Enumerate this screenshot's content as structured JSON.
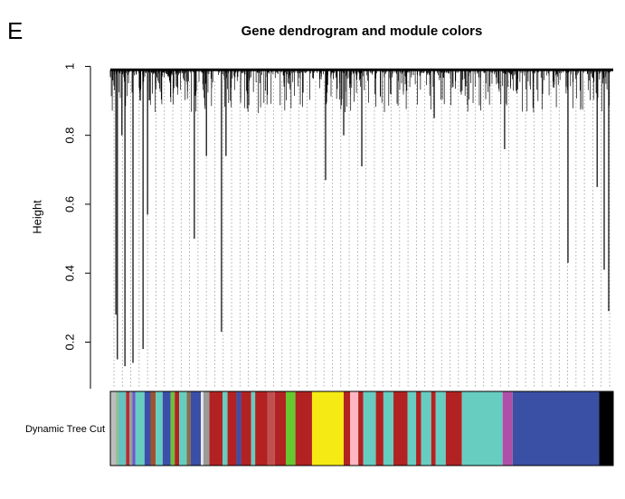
{
  "panel_label": "E",
  "chart_data": {
    "type": "dendrogram",
    "title": "Gene dendrogram and module colors",
    "ylabel": "Height",
    "ylim": [
      0.07,
      1.03
    ],
    "yticks": [
      0.2,
      0.4,
      0.6,
      0.8,
      1.0
    ],
    "xlim": [
      0,
      100
    ],
    "merge_height": 0.99,
    "x": [
      1.1,
      1.4,
      2.3,
      2.9,
      4.5,
      6.5,
      7.4,
      16.7,
      19.1,
      22.1,
      23.0,
      42.8,
      46.4,
      50.0,
      64.4,
      78.4,
      91.0,
      96.8,
      98.2,
      99.1
    ],
    "values": [
      0.28,
      0.15,
      0.8,
      0.13,
      0.14,
      0.18,
      0.57,
      0.5,
      0.74,
      0.23,
      0.74,
      0.67,
      0.8,
      0.71,
      0.85,
      0.76,
      0.43,
      0.65,
      0.41,
      0.29
    ],
    "color": "#000000",
    "row_label": "Dynamic Tree Cut",
    "module_colors": [
      "#bdbdbd",
      "#8fbc8f",
      "#66c2bf",
      "#b03030",
      "#9b9b9b",
      "#6a5acd",
      "#66cdc0",
      "#3b4fa8",
      "#a0522d",
      "#66cdc0",
      "#3b4fa8",
      "#6ac13a",
      "#b22222",
      "#66cdc0",
      "#8b6e4e",
      "#3b4fa8",
      "#e8e8e8",
      "#9a9a9a",
      "#b22222",
      "#66cdc0",
      "#b22222",
      "#3b4fa8",
      "#b22222",
      "#66cdc0",
      "#b22222",
      "#c05050",
      "#b22222",
      "#66c72e",
      "#b22222",
      "#f5ea14",
      "#b22222",
      "#ffb6c1",
      "#b22222",
      "#66cdc0",
      "#b22222",
      "#66cdc0",
      "#b22222",
      "#66cdc0",
      "#b22222",
      "#66cdc0",
      "#b22222",
      "#66cdc0",
      "#b22222",
      "#66cdc0",
      "#b04fa8",
      "#3a50a5",
      "#000000"
    ],
    "module_widths": [
      1.1,
      0.5,
      1.5,
      0.7,
      0.6,
      0.6,
      1.8,
      1.2,
      1.0,
      1.4,
      1.6,
      0.8,
      0.9,
      1.5,
      0.8,
      2.0,
      0.5,
      1.2,
      2.6,
      1.0,
      1.8,
      0.9,
      2.0,
      0.8,
      2.4,
      1.5,
      2.2,
      1.9,
      3.3,
      6.3,
      1.3,
      1.6,
      1.0,
      2.5,
      1.5,
      2.0,
      2.8,
      1.7,
      1.0,
      2.0,
      0.9,
      2.0,
      3.2,
      8.1,
      2.0,
      17.2,
      2.8
    ]
  }
}
